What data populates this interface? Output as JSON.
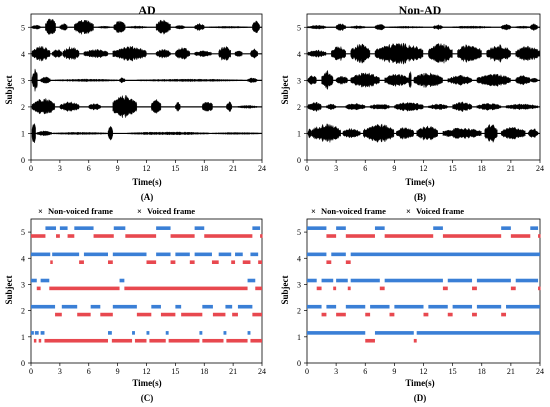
{
  "colors": {
    "unvoiced": "#e8484f",
    "voiced": "#3a7fd6",
    "wave": "#000000"
  },
  "chart_data": [
    {
      "type": "line",
      "title": "AD",
      "caption": "(A)",
      "xlabel": "Time(s)",
      "ylabel": "Subject",
      "xlim": [
        0,
        24
      ],
      "ylim": [
        0,
        5.5
      ],
      "xticks": [
        "0",
        "3",
        "6",
        "9",
        "12",
        "15",
        "18",
        "21",
        "24"
      ],
      "yticks": [
        "0",
        "1",
        "2",
        "3",
        "4",
        "5"
      ],
      "series": [
        {
          "subject": 1,
          "bursts": [
            [
              0.1,
              0.5,
              0.45
            ],
            [
              0.6,
              2.2,
              0.1
            ],
            [
              2.3,
              7.9,
              0.05
            ],
            [
              8.0,
              8.5,
              0.3
            ],
            [
              10.0,
              18.6,
              0.06
            ],
            [
              18.8,
              24.0,
              0.04
            ]
          ]
        },
        {
          "subject": 2,
          "bursts": [
            [
              0.1,
              2.5,
              0.35
            ],
            [
              3.0,
              5.0,
              0.2
            ],
            [
              6.0,
              7.3,
              0.15
            ],
            [
              8.5,
              11.0,
              0.45
            ],
            [
              12.5,
              13.5,
              0.3
            ],
            [
              15.0,
              15.5,
              0.2
            ],
            [
              17.8,
              18.9,
              0.25
            ],
            [
              20.3,
              20.9,
              0.2
            ],
            [
              21.5,
              23.5,
              0.06
            ]
          ]
        },
        {
          "subject": 3,
          "bursts": [
            [
              0.1,
              0.7,
              0.45
            ],
            [
              1.0,
              2.0,
              0.15
            ],
            [
              2.5,
              9.0,
              0.05
            ],
            [
              9.2,
              9.8,
              0.12
            ],
            [
              11.0,
              22.0,
              0.05
            ],
            [
              22.5,
              23.5,
              0.1
            ]
          ]
        },
        {
          "subject": 4,
          "bursts": [
            [
              0.1,
              2.0,
              0.3
            ],
            [
              2.2,
              3.2,
              0.18
            ],
            [
              3.3,
              5.0,
              0.28
            ],
            [
              5.5,
              8.0,
              0.18
            ],
            [
              8.5,
              12.0,
              0.3
            ],
            [
              13.0,
              14.5,
              0.18
            ],
            [
              15.0,
              16.5,
              0.25
            ],
            [
              17.0,
              18.8,
              0.12
            ],
            [
              19.5,
              20.8,
              0.3
            ],
            [
              21.2,
              22.0,
              0.15
            ],
            [
              22.8,
              23.6,
              0.2
            ]
          ]
        },
        {
          "subject": 5,
          "bursts": [
            [
              0.1,
              1.0,
              0.08
            ],
            [
              1.5,
              2.6,
              0.35
            ],
            [
              3.0,
              3.8,
              0.15
            ],
            [
              4.5,
              6.5,
              0.3
            ],
            [
              7.0,
              8.2,
              0.05
            ],
            [
              8.6,
              9.8,
              0.25
            ],
            [
              10.0,
              12.0,
              0.05
            ],
            [
              13.0,
              14.5,
              0.3
            ],
            [
              15.0,
              16.0,
              0.08
            ],
            [
              17.0,
              18.0,
              0.15
            ],
            [
              18.5,
              22.5,
              0.04
            ],
            [
              23.0,
              23.8,
              0.25
            ]
          ]
        }
      ]
    },
    {
      "type": "line",
      "title": "Non-AD",
      "caption": "(B)",
      "xlabel": "Time(s)",
      "ylabel": "Subject",
      "xlim": [
        0,
        24
      ],
      "ylim": [
        0,
        5.5
      ],
      "xticks": [
        "0",
        "3",
        "6",
        "9",
        "12",
        "15",
        "18",
        "21",
        "24"
      ],
      "yticks": [
        "0",
        "1",
        "2",
        "3",
        "4",
        "5"
      ],
      "series": [
        {
          "subject": 1,
          "bursts": [
            [
              0.1,
              0.5,
              0.2
            ],
            [
              0.5,
              3.5,
              0.38
            ],
            [
              3.7,
              5.5,
              0.2
            ],
            [
              5.8,
              9.0,
              0.38
            ],
            [
              9.2,
              11.0,
              0.25
            ],
            [
              11.3,
              13.5,
              0.3
            ],
            [
              14.0,
              18.0,
              0.22
            ],
            [
              18.3,
              19.6,
              0.38
            ],
            [
              20.0,
              22.5,
              0.25
            ],
            [
              22.8,
              23.8,
              0.2
            ]
          ]
        },
        {
          "subject": 2,
          "bursts": [
            [
              0.1,
              1.5,
              0.2
            ],
            [
              2.0,
              3.0,
              0.12
            ],
            [
              4.0,
              6.0,
              0.15
            ],
            [
              6.5,
              8.5,
              0.12
            ],
            [
              9.0,
              12.0,
              0.18
            ],
            [
              12.5,
              14.5,
              0.12
            ],
            [
              15.0,
              17.0,
              0.2
            ],
            [
              17.5,
              20.0,
              0.14
            ],
            [
              20.5,
              23.8,
              0.12
            ]
          ]
        },
        {
          "subject": 3,
          "bursts": [
            [
              0.1,
              1.0,
              0.2
            ],
            [
              1.5,
              2.7,
              0.38
            ],
            [
              3.0,
              4.2,
              0.18
            ],
            [
              4.5,
              7.5,
              0.3
            ],
            [
              8.0,
              10.5,
              0.25
            ],
            [
              10.5,
              10.8,
              0.4
            ],
            [
              11.0,
              14.0,
              0.3
            ],
            [
              14.5,
              17.0,
              0.2
            ],
            [
              17.5,
              21.0,
              0.25
            ],
            [
              21.5,
              23.0,
              0.2
            ],
            [
              23.0,
              23.8,
              0.1
            ]
          ]
        },
        {
          "subject": 4,
          "bursts": [
            [
              0.1,
              2.0,
              0.15
            ],
            [
              2.5,
              4.0,
              0.3
            ],
            [
              4.5,
              6.5,
              0.4
            ],
            [
              7.0,
              12.0,
              0.42
            ],
            [
              12.5,
              15.0,
              0.4
            ],
            [
              15.5,
              18.0,
              0.38
            ],
            [
              18.5,
              21.0,
              0.35
            ],
            [
              21.5,
              24.0,
              0.3
            ]
          ]
        },
        {
          "subject": 5,
          "bursts": [
            [
              0.1,
              2.0,
              0.08
            ],
            [
              3.0,
              4.0,
              0.15
            ],
            [
              4.5,
              6.0,
              0.06
            ],
            [
              7.0,
              8.0,
              0.12
            ],
            [
              8.5,
              12.0,
              0.04
            ],
            [
              13.0,
              14.0,
              0.1
            ],
            [
              15.0,
              19.0,
              0.05
            ],
            [
              20.0,
              21.0,
              0.12
            ],
            [
              21.5,
              23.0,
              0.05
            ],
            [
              23.0,
              23.8,
              0.15
            ]
          ]
        }
      ]
    },
    {
      "type": "scatter",
      "caption": "(C)",
      "xlabel": "Time(s)",
      "ylabel": "Subject",
      "xlim": [
        0,
        24
      ],
      "ylim": [
        0,
        5.5
      ],
      "xticks": [
        "0",
        "3",
        "6",
        "9",
        "12",
        "15",
        "18",
        "21",
        "24"
      ],
      "yticks": [
        "0",
        "1",
        "2",
        "3",
        "4",
        "5"
      ],
      "legend": [
        "Non-voiced frame",
        "Voiced frame"
      ],
      "rows": [
        {
          "subject": 1,
          "voiced": [
            [
              0.0,
              0.3
            ],
            [
              0.4,
              0.8
            ],
            [
              1.0,
              1.4
            ],
            [
              8.0,
              8.4
            ],
            [
              10.5,
              10.8
            ],
            [
              12.0,
              12.3
            ],
            [
              14.0,
              14.3
            ],
            [
              17.5,
              17.8
            ],
            [
              20.0,
              20.3
            ],
            [
              22.5,
              22.8
            ]
          ]
        },
        {
          "subject": 2,
          "voiced": [
            [
              0.0,
              2.5
            ],
            [
              3.2,
              4.8
            ],
            [
              6.2,
              7.2
            ],
            [
              8.5,
              11.0
            ],
            [
              12.5,
              13.5
            ],
            [
              15.0,
              15.6
            ],
            [
              17.8,
              18.9
            ],
            [
              20.2,
              20.9
            ],
            [
              21.5,
              23.0
            ]
          ]
        },
        {
          "subject": 3,
          "voiced": [
            [
              0.0,
              0.6
            ],
            [
              1.0,
              1.9
            ],
            [
              9.2,
              9.7
            ],
            [
              22.5,
              23.3
            ]
          ]
        },
        {
          "subject": 4,
          "voiced": [
            [
              0.0,
              2.0
            ],
            [
              2.2,
              5.0
            ],
            [
              5.5,
              8.0
            ],
            [
              8.5,
              12.0
            ],
            [
              13.0,
              14.5
            ],
            [
              15.0,
              16.5
            ],
            [
              17.0,
              18.8
            ],
            [
              19.5,
              20.8
            ],
            [
              21.2,
              22.0
            ],
            [
              22.8,
              23.6
            ]
          ]
        },
        {
          "subject": 5,
          "voiced": [
            [
              1.5,
              2.6
            ],
            [
              3.0,
              3.8
            ],
            [
              4.5,
              6.5
            ],
            [
              8.6,
              9.8
            ],
            [
              13.0,
              14.5
            ],
            [
              17.0,
              18.0
            ],
            [
              23.0,
              23.8
            ]
          ]
        }
      ]
    },
    {
      "type": "scatter",
      "caption": "(D)",
      "xlabel": "Time(s)",
      "ylabel": "Subject",
      "xlim": [
        0,
        24
      ],
      "ylim": [
        0,
        5.5
      ],
      "xticks": [
        "0",
        "3",
        "6",
        "9",
        "12",
        "15",
        "18",
        "21",
        "24"
      ],
      "yticks": [
        "0",
        "1",
        "2",
        "3",
        "4",
        "5"
      ],
      "legend": [
        "Non-voiced frame",
        "Voiced frame"
      ],
      "rows": [
        {
          "subject": 1,
          "voiced": [
            [
              0.0,
              6.0
            ],
            [
              7.0,
              11.0
            ],
            [
              11.3,
              24.0
            ]
          ]
        },
        {
          "subject": 2,
          "voiced": [
            [
              0.0,
              1.5
            ],
            [
              2.0,
              3.0
            ],
            [
              4.0,
              6.0
            ],
            [
              6.5,
              8.5
            ],
            [
              9.0,
              12.0
            ],
            [
              12.5,
              14.5
            ],
            [
              15.0,
              17.0
            ],
            [
              17.5,
              20.0
            ],
            [
              20.5,
              24.0
            ]
          ]
        },
        {
          "subject": 3,
          "voiced": [
            [
              0.0,
              1.0
            ],
            [
              1.5,
              2.7
            ],
            [
              3.0,
              4.2
            ],
            [
              4.5,
              7.5
            ],
            [
              8.0,
              14.0
            ],
            [
              14.5,
              17.0
            ],
            [
              17.5,
              21.0
            ],
            [
              21.5,
              23.8
            ]
          ]
        },
        {
          "subject": 4,
          "voiced": [
            [
              0.0,
              2.0
            ],
            [
              2.5,
              4.0
            ],
            [
              4.5,
              24.0
            ]
          ]
        },
        {
          "subject": 5,
          "voiced": [
            [
              0.0,
              2.0
            ],
            [
              3.0,
              4.0
            ],
            [
              7.0,
              8.0
            ],
            [
              13.0,
              14.0
            ],
            [
              20.0,
              21.0
            ],
            [
              23.0,
              23.8
            ]
          ]
        }
      ]
    }
  ]
}
